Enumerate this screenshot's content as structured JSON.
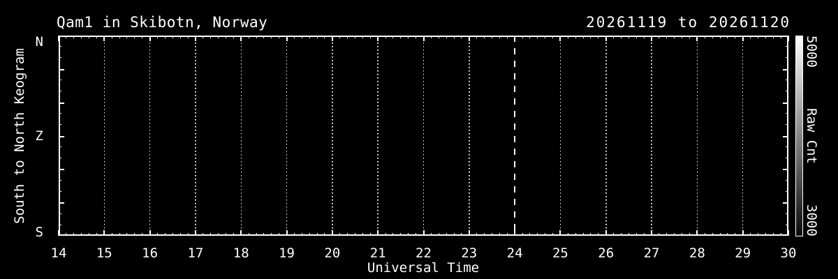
{
  "figure": {
    "background": "#000000",
    "foreground": "#ffffff"
  },
  "chart_data": {
    "type": "heatmap",
    "subtype": "keogram",
    "title": "Qam1 in Skibotn, Norway",
    "subtitle": "20261119 to 20261120",
    "station": "Qam1",
    "location": "Skibotn, Norway",
    "date_start": "20261119",
    "date_end": "20261120",
    "xlabel": "Universal Time",
    "ylabel": "South to North Keogram",
    "xlim": [
      14,
      30
    ],
    "x_major_ticks": [
      14,
      15,
      16,
      17,
      18,
      19,
      20,
      21,
      22,
      23,
      24,
      25,
      26,
      27,
      28,
      29,
      30
    ],
    "x_minor_divisions": 6,
    "y_axis": {
      "tick_labels": [
        {
          "label": "N",
          "pos": 0.03
        },
        {
          "label": "Z",
          "pos": 0.5
        },
        {
          "label": "S",
          "pos": 0.982
        }
      ],
      "major_divisions": 6,
      "minor_divisions": 3
    },
    "grid_hours_dotted": [
      15,
      16,
      17,
      18,
      19,
      20,
      21,
      22,
      23,
      25,
      26,
      27,
      28,
      29
    ],
    "midnight_line": {
      "x": 24,
      "style": "dashed"
    },
    "values": [],
    "colorbar": {
      "label": "Raw Cnt",
      "max": 5000,
      "min": 3000,
      "max_label": "5000",
      "min_label": "3000",
      "gradient_top": "#ffffff",
      "gradient_bottom": "#0a0a0a"
    }
  }
}
